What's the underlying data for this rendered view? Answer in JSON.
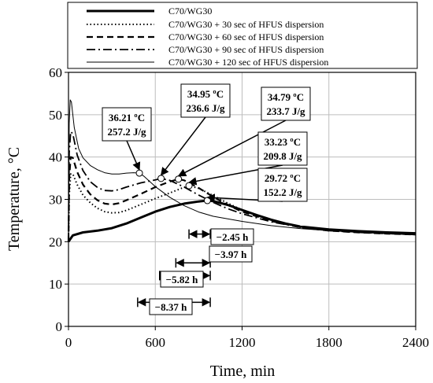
{
  "chart_data": {
    "type": "line",
    "xlabel": "Time, min",
    "ylabel": "Temperature, °C",
    "xlim": [
      0,
      2400
    ],
    "ylim": [
      0,
      60
    ],
    "x_ticks": [
      0,
      600,
      1200,
      1800,
      2400
    ],
    "y_ticks": [
      0,
      10,
      20,
      30,
      40,
      50,
      60
    ],
    "grid": true,
    "legend_position": "top",
    "series": [
      {
        "name": "C70/WG30",
        "style": "solid-thick",
        "points": [
          [
            0,
            20
          ],
          [
            30,
            21.5
          ],
          [
            100,
            22.2
          ],
          [
            200,
            22.6
          ],
          [
            300,
            23.2
          ],
          [
            400,
            24.3
          ],
          [
            500,
            25.7
          ],
          [
            600,
            27.1
          ],
          [
            700,
            28.2
          ],
          [
            800,
            29.0
          ],
          [
            900,
            29.5
          ],
          [
            960,
            29.72
          ],
          [
            1000,
            29.6
          ],
          [
            1100,
            28.7
          ],
          [
            1200,
            27.5
          ],
          [
            1300,
            26.3
          ],
          [
            1400,
            25.2
          ],
          [
            1500,
            24.3
          ],
          [
            1600,
            23.6
          ],
          [
            1800,
            22.9
          ],
          [
            2000,
            22.5
          ],
          [
            2200,
            22.2
          ],
          [
            2400,
            22.0
          ]
        ]
      },
      {
        "name": "C70/WG30 + 30 sec of HFUS dispersion",
        "style": "dotted",
        "points": [
          [
            0,
            20
          ],
          [
            5,
            31
          ],
          [
            15,
            36
          ],
          [
            30,
            36
          ],
          [
            60,
            33.5
          ],
          [
            100,
            31
          ],
          [
            150,
            29.2
          ],
          [
            200,
            27.9
          ],
          [
            250,
            27.1
          ],
          [
            300,
            26.8
          ],
          [
            350,
            26.9
          ],
          [
            400,
            27.4
          ],
          [
            500,
            28.8
          ],
          [
            600,
            30.2
          ],
          [
            700,
            31.5
          ],
          [
            780,
            32.6
          ],
          [
            833,
            33.23
          ],
          [
            900,
            32.6
          ],
          [
            1000,
            30.9
          ],
          [
            1100,
            29.1
          ],
          [
            1200,
            27.5
          ],
          [
            1400,
            25.1
          ],
          [
            1600,
            23.6
          ],
          [
            1800,
            22.8
          ],
          [
            2000,
            22.3
          ],
          [
            2200,
            22.0
          ],
          [
            2400,
            21.7
          ]
        ]
      },
      {
        "name": "C70/WG30 + 60 sec of HFUS dispersion",
        "style": "dashed",
        "points": [
          [
            0,
            20
          ],
          [
            5,
            35
          ],
          [
            15,
            40
          ],
          [
            30,
            39.8
          ],
          [
            60,
            36.5
          ],
          [
            100,
            33.5
          ],
          [
            150,
            31.2
          ],
          [
            200,
            29.8
          ],
          [
            250,
            29.0
          ],
          [
            300,
            28.8
          ],
          [
            350,
            29.1
          ],
          [
            400,
            29.8
          ],
          [
            500,
            31.3
          ],
          [
            600,
            32.9
          ],
          [
            700,
            34.2
          ],
          [
            760,
            34.79
          ],
          [
            800,
            34.5
          ],
          [
            900,
            32.7
          ],
          [
            1000,
            30.6
          ],
          [
            1100,
            28.7
          ],
          [
            1200,
            27.1
          ],
          [
            1400,
            24.9
          ],
          [
            1600,
            23.4
          ],
          [
            1800,
            22.6
          ],
          [
            2000,
            22.2
          ],
          [
            2200,
            21.9
          ],
          [
            2400,
            21.7
          ]
        ]
      },
      {
        "name": "C70/WG30 + 90 sec of HFUS dispersion",
        "style": "dash-dot",
        "points": [
          [
            0,
            20
          ],
          [
            5,
            41
          ],
          [
            15,
            46
          ],
          [
            30,
            45.5
          ],
          [
            60,
            40.5
          ],
          [
            100,
            36.8
          ],
          [
            150,
            34.2
          ],
          [
            200,
            32.8
          ],
          [
            250,
            32.1
          ],
          [
            300,
            32.0
          ],
          [
            350,
            32.3
          ],
          [
            400,
            32.9
          ],
          [
            500,
            33.9
          ],
          [
            600,
            34.6
          ],
          [
            640,
            34.95
          ],
          [
            700,
            34.5
          ],
          [
            800,
            32.9
          ],
          [
            900,
            31.0
          ],
          [
            1000,
            29.3
          ],
          [
            1100,
            27.8
          ],
          [
            1200,
            26.6
          ],
          [
            1400,
            24.7
          ],
          [
            1600,
            23.4
          ],
          [
            1800,
            22.6
          ],
          [
            2000,
            22.2
          ],
          [
            2200,
            21.9
          ],
          [
            2400,
            21.7
          ]
        ]
      },
      {
        "name": "C70/WG30 + 120 sec of HFUS dispersion",
        "style": "solid-thin",
        "points": [
          [
            0,
            20
          ],
          [
            5,
            48
          ],
          [
            12,
            53.5
          ],
          [
            20,
            53
          ],
          [
            40,
            47
          ],
          [
            70,
            42
          ],
          [
            100,
            39.8
          ],
          [
            150,
            38
          ],
          [
            200,
            37
          ],
          [
            250,
            36.3
          ],
          [
            300,
            36.0
          ],
          [
            350,
            36.0
          ],
          [
            400,
            36.2
          ],
          [
            450,
            36.3
          ],
          [
            490,
            36.21
          ],
          [
            520,
            35.5
          ],
          [
            600,
            33.0
          ],
          [
            700,
            30.5
          ],
          [
            800,
            28.5
          ],
          [
            900,
            27.0
          ],
          [
            1000,
            26.0
          ],
          [
            1200,
            24.8
          ],
          [
            1400,
            23.8
          ],
          [
            1600,
            23.1
          ],
          [
            1800,
            22.6
          ],
          [
            2000,
            22.2
          ],
          [
            2200,
            21.9
          ],
          [
            2400,
            21.6
          ]
        ]
      }
    ],
    "annotations": [
      {
        "line1": "36.21 ºC",
        "line2": "257.2 J/g",
        "point": [
          490,
          36.21
        ]
      },
      {
        "line1": "34.95 ºC",
        "line2": "236.6 J/g",
        "point": [
          640,
          34.95
        ]
      },
      {
        "line1": "34.79 ºC",
        "line2": "233.7 J/g",
        "point": [
          760,
          34.79
        ]
      },
      {
        "line1": "33.23 ºC",
        "line2": "209.8 J/g",
        "point": [
          833,
          33.23
        ]
      },
      {
        "line1": "29.72 ºC",
        "line2": "152.2 J/g",
        "point": [
          960,
          29.72
        ]
      }
    ],
    "durations": [
      {
        "label": "−2.45 h",
        "x0": 833,
        "x1": 980,
        "y": 21.8
      },
      {
        "label": "−3.97 h",
        "x0": 742,
        "x1": 980,
        "y": 15.0
      },
      {
        "label": "−5.82 h",
        "x0": 630,
        "x1": 980,
        "y": 12.0
      },
      {
        "label": "−8.37 h",
        "x0": 478,
        "x1": 980,
        "y": 5.7
      }
    ]
  }
}
